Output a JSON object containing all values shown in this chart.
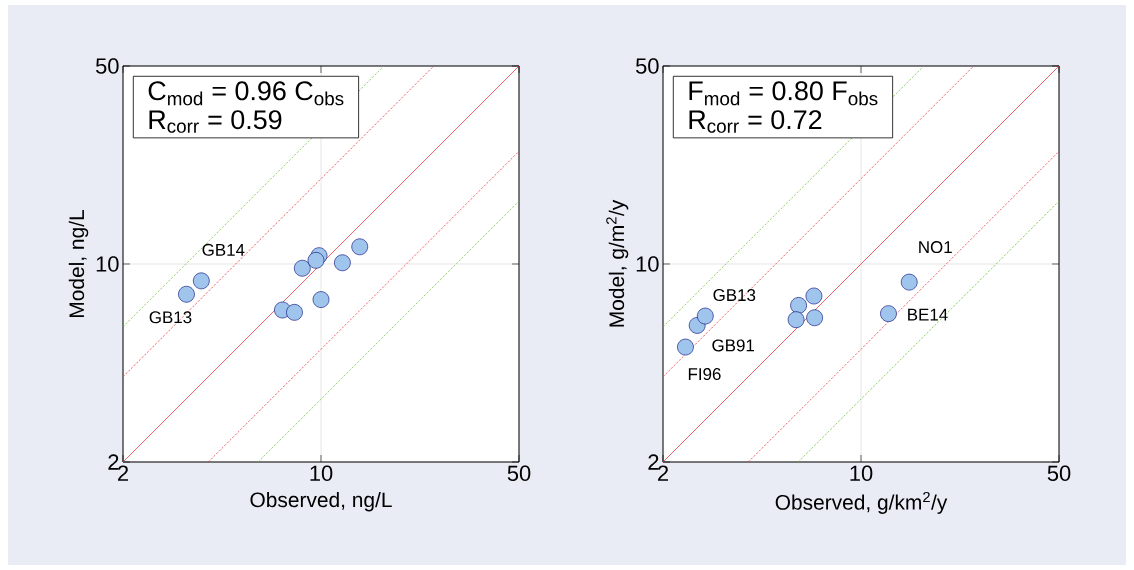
{
  "chart_data": [
    {
      "type": "scatter",
      "xlabel": "Observed, ng/L",
      "ylabel": "Model, ng/L",
      "xlim": [
        2,
        50
      ],
      "ylim": [
        2,
        50
      ],
      "xticks": [
        2,
        10,
        50
      ],
      "yticks": [
        2,
        10,
        50
      ],
      "log": "xy",
      "grid": true,
      "series": [
        {
          "type": "line",
          "color": "#e8303a",
          "line_style": "solid",
          "x": [
            2,
            50
          ],
          "values": [
            2,
            50
          ]
        },
        {
          "type": "line",
          "color": "#e8303a",
          "line_style": "dashed",
          "x": [
            2,
            25
          ],
          "values": [
            4,
            50
          ]
        },
        {
          "type": "line",
          "color": "#e8303a",
          "line_style": "dashed",
          "x": [
            4,
            50
          ],
          "values": [
            2,
            25
          ]
        },
        {
          "type": "line",
          "color": "#6cbf3a",
          "line_style": "dashed",
          "x": [
            2,
            16.67
          ],
          "values": [
            6,
            50
          ]
        },
        {
          "type": "line",
          "color": "#6cbf3a",
          "line_style": "dashed",
          "x": [
            6,
            50
          ],
          "values": [
            2,
            16.67
          ]
        },
        {
          "marker": "circle",
          "color": "#9fc5ec",
          "x": [
            3.35,
            3.78,
            7.31,
            8.06,
            8.59,
            9.84,
            9.6,
            10.0,
            11.9,
            13.7
          ],
          "values": [
            7.82,
            8.72,
            6.88,
            6.75,
            9.66,
            10.7,
            10.3,
            7.49,
            10.1,
            11.5
          ]
        }
      ],
      "annotations": [
        "C$_{mod}$ = 0.96 C$_{obs}$",
        "R$_{corr}$ = 0.59",
        {
          "text": "GB14",
          "x": 3.78,
          "y": 8.72
        },
        {
          "text": "GB13",
          "x": 3.35,
          "y": 7.82
        }
      ]
    },
    {
      "type": "scatter",
      "xlabel": "Observed, g/km$^{2}$/y",
      "ylabel": "Model, g/m$^{2}$/y",
      "xlim": [
        2,
        50
      ],
      "ylim": [
        2,
        50
      ],
      "xticks": [
        2,
        10,
        50
      ],
      "yticks": [
        2,
        10,
        50
      ],
      "log": "xy",
      "grid": true,
      "series": [
        {
          "type": "line",
          "color": "#e8303a",
          "line_style": "solid",
          "x": [
            2,
            50
          ],
          "values": [
            2,
            50
          ]
        },
        {
          "type": "line",
          "color": "#e8303a",
          "line_style": "dashed",
          "x": [
            2,
            25
          ],
          "values": [
            4,
            50
          ]
        },
        {
          "type": "line",
          "color": "#e8303a",
          "line_style": "dashed",
          "x": [
            4,
            50
          ],
          "values": [
            2,
            25
          ]
        },
        {
          "type": "line",
          "color": "#6cbf3a",
          "line_style": "dashed",
          "x": [
            2,
            16.67
          ],
          "values": [
            6,
            50
          ]
        },
        {
          "type": "line",
          "color": "#6cbf3a",
          "line_style": "dashed",
          "x": [
            6,
            50
          ],
          "values": [
            2,
            16.67
          ]
        },
        {
          "marker": "circle",
          "color": "#9fc5ec",
          "x": [
            2.4,
            2.64,
            2.82,
            6.02,
            6.82,
            5.9,
            6.86,
            12.5,
            14.8
          ],
          "values": [
            5.09,
            6.07,
            6.55,
            7.14,
            7.71,
            6.36,
            6.46,
            6.68,
            8.63
          ]
        }
      ],
      "annotations": [
        "F$_{mod}$ = 0.80 F$_{obs}$",
        "R$_{corr}$ = 0.72",
        {
          "text": "FI96",
          "x": 2.4,
          "y": 5.09
        },
        {
          "text": "GB91",
          "x": 2.64,
          "y": 6.07
        },
        {
          "text": "GB13",
          "x": 2.82,
          "y": 6.55
        },
        {
          "text": "BE14",
          "x": 12.5,
          "y": 6.68
        },
        {
          "text": "NO1",
          "x": 14.8,
          "y": 8.63
        }
      ]
    }
  ]
}
